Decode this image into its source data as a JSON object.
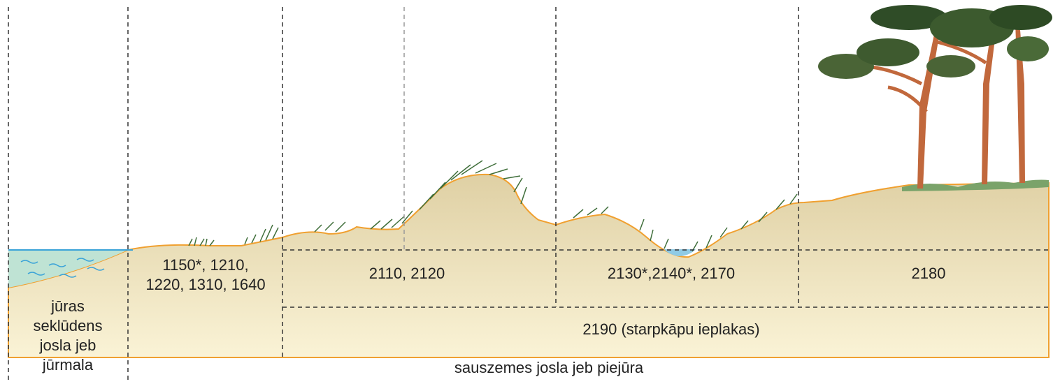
{
  "sea_zone": {
    "lines": [
      "jūras",
      "seklūdens",
      "josla jeb",
      "jūrmala"
    ]
  },
  "habitat_zones": [
    {
      "lines": [
        "1150*, 1210,",
        "1220, 1310, 1640"
      ]
    },
    {
      "lines": [
        "2110, 2120"
      ]
    },
    {
      "lines": [
        "2130*,2140*, 2170"
      ]
    },
    {
      "lines": [
        "2180"
      ]
    }
  ],
  "interdune_zone": {
    "label": "2190 (starpkāpu ieplakas)"
  },
  "land_zone": {
    "label": "sauszemes josla jeb piejūra"
  }
}
